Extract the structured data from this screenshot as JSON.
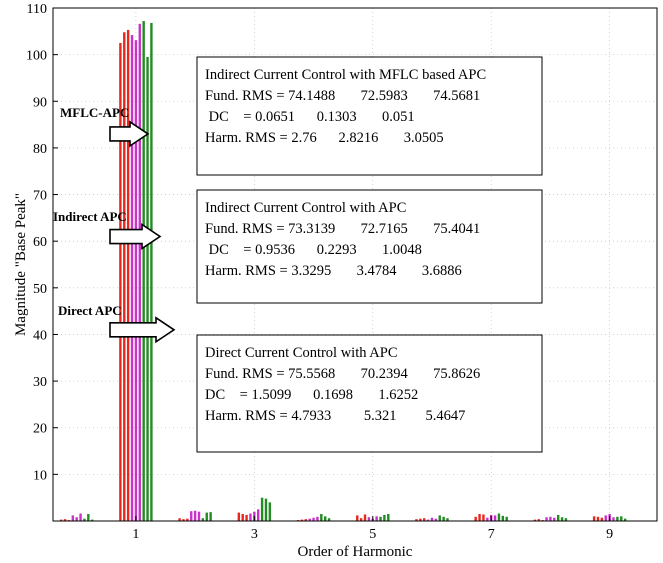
{
  "chart_data": {
    "type": "bar",
    "xlabel": "Order of Harmonic",
    "ylabel": "Magnitude \"Base Peak\"",
    "xlim": [
      -0.4,
      9.8
    ],
    "ylim": [
      0,
      110
    ],
    "xticks": [
      1,
      3,
      5,
      7,
      9
    ],
    "yticks": [
      10,
      20,
      30,
      40,
      50,
      60,
      70,
      80,
      90,
      100,
      110
    ],
    "grid": true,
    "series_colors": [
      "#e8281e",
      "#c832c8",
      "#228b22"
    ],
    "harmonics": [
      {
        "order": 0,
        "bars": [
          0.3,
          0.4,
          0.2,
          1.2,
          0.8,
          1.6,
          0.5,
          1.5,
          0.3
        ]
      },
      {
        "order": 1,
        "bars": [
          102.5,
          104.8,
          105.3,
          104.2,
          103.1,
          106.6,
          107.2,
          99.5,
          106.8
        ]
      },
      {
        "order": 2,
        "bars": [
          0.6,
          0.4,
          0.5,
          2.1,
          2.2,
          2.0,
          0.6,
          1.8,
          1.9
        ]
      },
      {
        "order": 3,
        "bars": [
          1.8,
          1.5,
          1.3,
          1.6,
          2.0,
          2.5,
          5.0,
          4.8,
          4.0
        ]
      },
      {
        "order": 4,
        "bars": [
          0.2,
          0.3,
          0.4,
          0.5,
          0.7,
          0.9,
          1.5,
          1.0,
          0.6
        ]
      },
      {
        "order": 5,
        "bars": [
          1.2,
          0.6,
          1.4,
          0.8,
          0.5,
          1.0,
          0.9,
          1.3,
          1.5
        ]
      },
      {
        "order": 6,
        "bars": [
          0.4,
          0.5,
          0.6,
          0.3,
          0.7,
          0.5,
          1.2,
          0.9,
          0.6
        ]
      },
      {
        "order": 7,
        "bars": [
          0.9,
          1.5,
          1.4,
          0.7,
          1.3,
          1.2,
          1.6,
          1.1,
          0.9
        ]
      },
      {
        "order": 8,
        "bars": [
          0.3,
          0.4,
          0.2,
          0.8,
          0.9,
          0.7,
          1.3,
          0.8,
          0.6
        ]
      },
      {
        "order": 9,
        "bars": [
          1.0,
          0.9,
          0.7,
          1.2,
          1.5,
          0.8,
          0.9,
          1.0,
          0.5
        ]
      }
    ],
    "annotations": [
      {
        "label": "MFLC-APC",
        "points_to": 83
      },
      {
        "label": "Indirect APC",
        "points_to": 61
      },
      {
        "label": "Direct APC",
        "points_to": 41
      }
    ],
    "boxes": [
      {
        "lines": [
          "Indirect Current Control with MFLC based APC",
          "Fund. RMS = 74.1488       72.5983       74.5681",
          " DC    = 0.0651      0.1303       0.051",
          "Harm. RMS = 2.76      2.8216       3.0505"
        ]
      },
      {
        "lines": [
          "Indirect Current Control with APC",
          "Fund. RMS = 73.3139       72.7165       75.4041",
          " DC    = 0.9536      0.2293       1.0048",
          "Harm. RMS = 3.3295       3.4784       3.6886"
        ]
      },
      {
        "lines": [
          "Direct Current Control with APC",
          "Fund. RMS = 75.5568       70.2394       75.8626",
          "DC    = 1.5099      0.1698       1.6252",
          "Harm. RMS = 4.7933         5.321        5.4647"
        ]
      }
    ]
  }
}
